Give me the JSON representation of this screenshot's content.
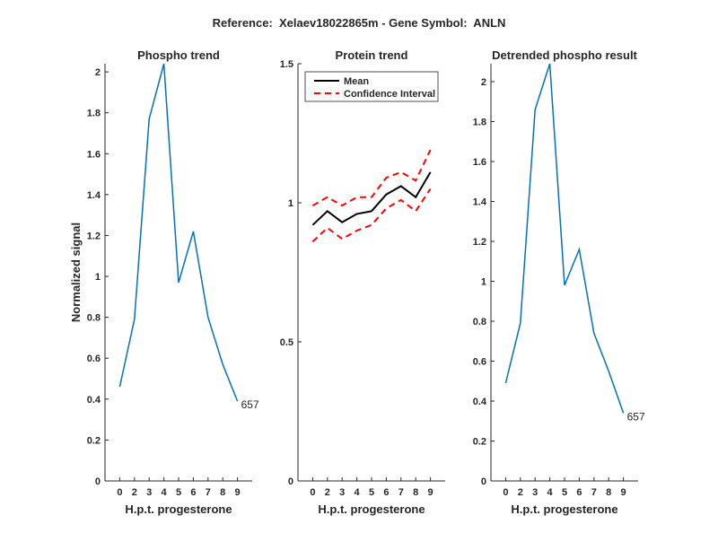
{
  "suptitle": "Reference:  Xelaev18022865m - Gene Symbol:  ANLN",
  "chart_data": [
    {
      "type": "line",
      "title": "Phospho trend",
      "xlabel": "H.p.t. progesterone",
      "ylabel": "Normalized signal",
      "categories": [
        "0",
        "2",
        "3",
        "4",
        "5",
        "6",
        "7",
        "8",
        "9"
      ],
      "ylim": [
        0,
        2.04
      ],
      "yticks": [
        0,
        0.2,
        0.4,
        0.6,
        0.8,
        1,
        1.2,
        1.4,
        1.6,
        1.8,
        2
      ],
      "series": [
        {
          "values": [
            0.46,
            0.79,
            1.77,
            2.04,
            0.97,
            1.22,
            0.8,
            0.57,
            0.39
          ],
          "color": "#0072BD",
          "style": "solid"
        }
      ],
      "annotation": "657",
      "grid": false
    },
    {
      "type": "line",
      "title": "Protein trend",
      "xlabel": "H.p.t. progesterone",
      "ylabel": "",
      "categories": [
        "0",
        "2",
        "3",
        "4",
        "5",
        "6",
        "7",
        "8",
        "9"
      ],
      "ylim": [
        0,
        1.5
      ],
      "yticks": [
        0,
        0.5,
        1,
        1.5
      ],
      "series": [
        {
          "name": "Mean",
          "values": [
            0.92,
            0.97,
            0.93,
            0.96,
            0.97,
            1.03,
            1.06,
            1.02,
            1.11
          ],
          "color": "#000000",
          "style": "solid"
        },
        {
          "name": "Confidence Interval",
          "values": [
            0.99,
            1.02,
            0.99,
            1.02,
            1.02,
            1.09,
            1.11,
            1.08,
            1.19
          ],
          "color": "#FF0000",
          "style": "dashed"
        },
        {
          "values": [
            0.86,
            0.91,
            0.87,
            0.9,
            0.92,
            0.98,
            1.01,
            0.97,
            1.05
          ],
          "color": "#FF0000",
          "style": "dashed"
        }
      ],
      "legend": "top-left",
      "grid": false
    },
    {
      "type": "line",
      "title": "Detrended phospho result",
      "xlabel": "H.p.t. progesterone",
      "ylabel": "",
      "categories": [
        "0",
        "2",
        "3",
        "4",
        "5",
        "6",
        "7",
        "8",
        "9"
      ],
      "ylim": [
        0,
        2.09
      ],
      "yticks": [
        0,
        0.2,
        0.4,
        0.6,
        0.8,
        1,
        1.2,
        1.4,
        1.6,
        1.8,
        2
      ],
      "series": [
        {
          "values": [
            0.49,
            0.79,
            1.86,
            2.09,
            0.98,
            1.16,
            0.74,
            0.55,
            0.34
          ],
          "color": "#0072BD",
          "style": "solid"
        }
      ],
      "annotation": "657",
      "grid": false
    }
  ]
}
